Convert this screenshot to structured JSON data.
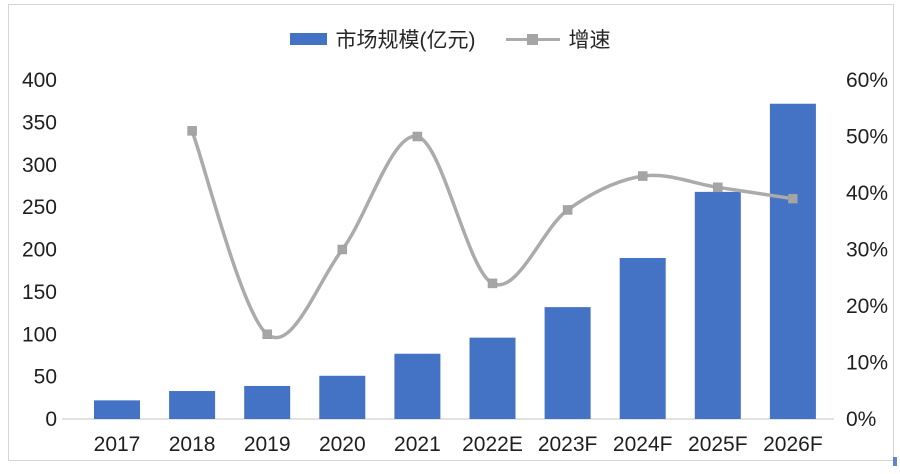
{
  "legend": {
    "bar_label": "市场规模(亿元)",
    "line_label": "增速"
  },
  "colors": {
    "bar": "#4472C4",
    "line": "#ABABAB",
    "marker": "#A5A5A5",
    "axis_line": "#D9D9D9",
    "tick_text": "#1F1F1F",
    "frame_border": "#D6D6D6",
    "artifact": "#4472C4"
  },
  "chart_data": {
    "type": "bar",
    "subtype": "combo-bar-line-dual-axis",
    "title": "",
    "categories": [
      "2017",
      "2018",
      "2019",
      "2020",
      "2021",
      "2022E",
      "2023F",
      "2024F",
      "2025F",
      "2026F"
    ],
    "series": [
      {
        "name": "市场规模(亿元)",
        "type": "bar",
        "axis": "left",
        "values": [
          22,
          33,
          39,
          51,
          77,
          96,
          132,
          190,
          268,
          372
        ]
      },
      {
        "name": "增速",
        "type": "line",
        "axis": "right",
        "unit": "%",
        "values": [
          null,
          51,
          15,
          30,
          50,
          24,
          37,
          43,
          41,
          39
        ]
      }
    ],
    "left_axis": {
      "min": 0,
      "max": 400,
      "tick_values": [
        0,
        50,
        100,
        150,
        200,
        250,
        300,
        350,
        400
      ],
      "tick_labels": [
        "0",
        "50",
        "100",
        "150",
        "200",
        "250",
        "300",
        "350",
        "400"
      ]
    },
    "right_axis": {
      "min": 0,
      "max": 60,
      "tick_values": [
        0,
        10,
        20,
        30,
        40,
        50,
        60
      ],
      "tick_labels": [
        "0%",
        "10%",
        "20%",
        "30%",
        "40%",
        "50%",
        "60%"
      ]
    },
    "grid": false,
    "legend_position": "top-center",
    "line_smooth": true
  }
}
